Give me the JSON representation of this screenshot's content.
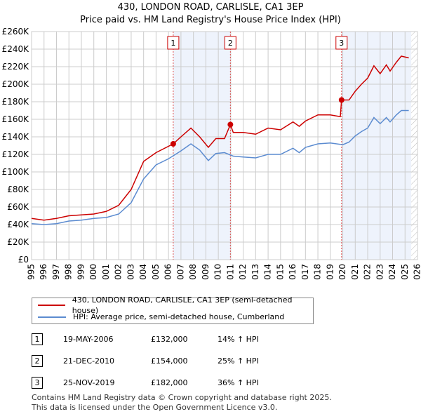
{
  "title": "430, LONDON ROAD, CARLISLE, CA1 3EP",
  "subtitle": "Price paid vs. HM Land Registry's House Price Index (HPI)",
  "chart_data": {
    "type": "line",
    "ylim": [
      0,
      260000
    ],
    "xlim": [
      1995,
      2026
    ],
    "yticks": [
      "£0",
      "£20K",
      "£40K",
      "£60K",
      "£80K",
      "£100K",
      "£120K",
      "£140K",
      "£160K",
      "£180K",
      "£200K",
      "£220K",
      "£240K",
      "£260K"
    ],
    "xticks": [
      "1995",
      "1996",
      "1997",
      "1998",
      "1999",
      "2000",
      "2001",
      "2002",
      "2003",
      "2004",
      "2005",
      "2006",
      "2007",
      "2008",
      "2009",
      "2010",
      "2011",
      "2012",
      "2013",
      "2014",
      "2015",
      "2016",
      "2017",
      "2018",
      "2019",
      "2020",
      "2021",
      "2022",
      "2023",
      "2024",
      "2025",
      "2026"
    ],
    "series": [
      {
        "name": "430, LONDON ROAD, CARLISLE, CA1 3EP (semi-detached house)",
        "color": "#cc0000",
        "x": [
          1995,
          1996,
          1997,
          1998,
          1999,
          2000,
          2001,
          2002,
          2003,
          2004,
          2005,
          2006.38,
          2007,
          2007.8,
          2008.5,
          2009.2,
          2009.8,
          2010.5,
          2010.97,
          2011.2,
          2012,
          2013,
          2014,
          2015,
          2016,
          2016.5,
          2017,
          2018,
          2019,
          2019.8,
          2019.9,
          2020.5,
          2021,
          2021.5,
          2022,
          2022.5,
          2023,
          2023.5,
          2023.8,
          2024.3,
          2024.7,
          2025.3
        ],
        "y": [
          47000,
          45000,
          47000,
          50000,
          51000,
          52000,
          55000,
          62000,
          80000,
          112000,
          122000,
          132000,
          140000,
          150000,
          140000,
          128000,
          138000,
          138000,
          154000,
          145000,
          145000,
          143000,
          150000,
          148000,
          157000,
          152000,
          158000,
          165000,
          165000,
          163000,
          182000,
          182000,
          192000,
          200000,
          207000,
          221000,
          212000,
          222000,
          215000,
          225000,
          232000,
          230000
        ]
      },
      {
        "name": "HPI: Average price, semi-detached house, Cumberland",
        "color": "#5b8bd0",
        "x": [
          1995,
          1996,
          1997,
          1998,
          1999,
          2000,
          2001,
          2002,
          2003,
          2004,
          2005,
          2006,
          2007,
          2007.8,
          2008.5,
          2009.2,
          2009.8,
          2010.5,
          2011.2,
          2012,
          2013,
          2014,
          2015,
          2016,
          2016.5,
          2017,
          2018,
          2019,
          2020,
          2020.5,
          2021,
          2021.5,
          2022,
          2022.5,
          2023,
          2023.5,
          2023.8,
          2024.3,
          2024.7,
          2025.3
        ],
        "y": [
          41000,
          40000,
          41000,
          44000,
          45000,
          47000,
          48000,
          52000,
          65000,
          92000,
          108000,
          115000,
          124000,
          132000,
          125000,
          113000,
          121000,
          122000,
          118000,
          117000,
          116000,
          120000,
          120000,
          127000,
          122000,
          128000,
          132000,
          133000,
          131000,
          134000,
          141000,
          146000,
          150000,
          162000,
          155000,
          162000,
          157000,
          165000,
          170000,
          170000
        ]
      }
    ],
    "sales": [
      {
        "label": "1",
        "x": 2006.38,
        "y": 132000
      },
      {
        "label": "2",
        "x": 2010.97,
        "y": 154000
      },
      {
        "label": "3",
        "x": 2019.9,
        "y": 182000
      }
    ],
    "shaded": [
      [
        2006.38,
        2010.97
      ],
      [
        2019.9,
        2025.5
      ]
    ]
  },
  "legend": [
    "430, LONDON ROAD, CARLISLE, CA1 3EP (semi-detached house)",
    "HPI: Average price, semi-detached house, Cumberland"
  ],
  "transactions": [
    {
      "num": "1",
      "date": "19-MAY-2006",
      "price": "£132,000",
      "hpi": "14% ↑ HPI"
    },
    {
      "num": "2",
      "date": "21-DEC-2010",
      "price": "£154,000",
      "hpi": "25% ↑ HPI"
    },
    {
      "num": "3",
      "date": "25-NOV-2019",
      "price": "£182,000",
      "hpi": "36% ↑ HPI"
    }
  ],
  "footer": [
    "Contains HM Land Registry data © Crown copyright and database right 2025.",
    "This data is licensed under the Open Government Licence v3.0."
  ]
}
